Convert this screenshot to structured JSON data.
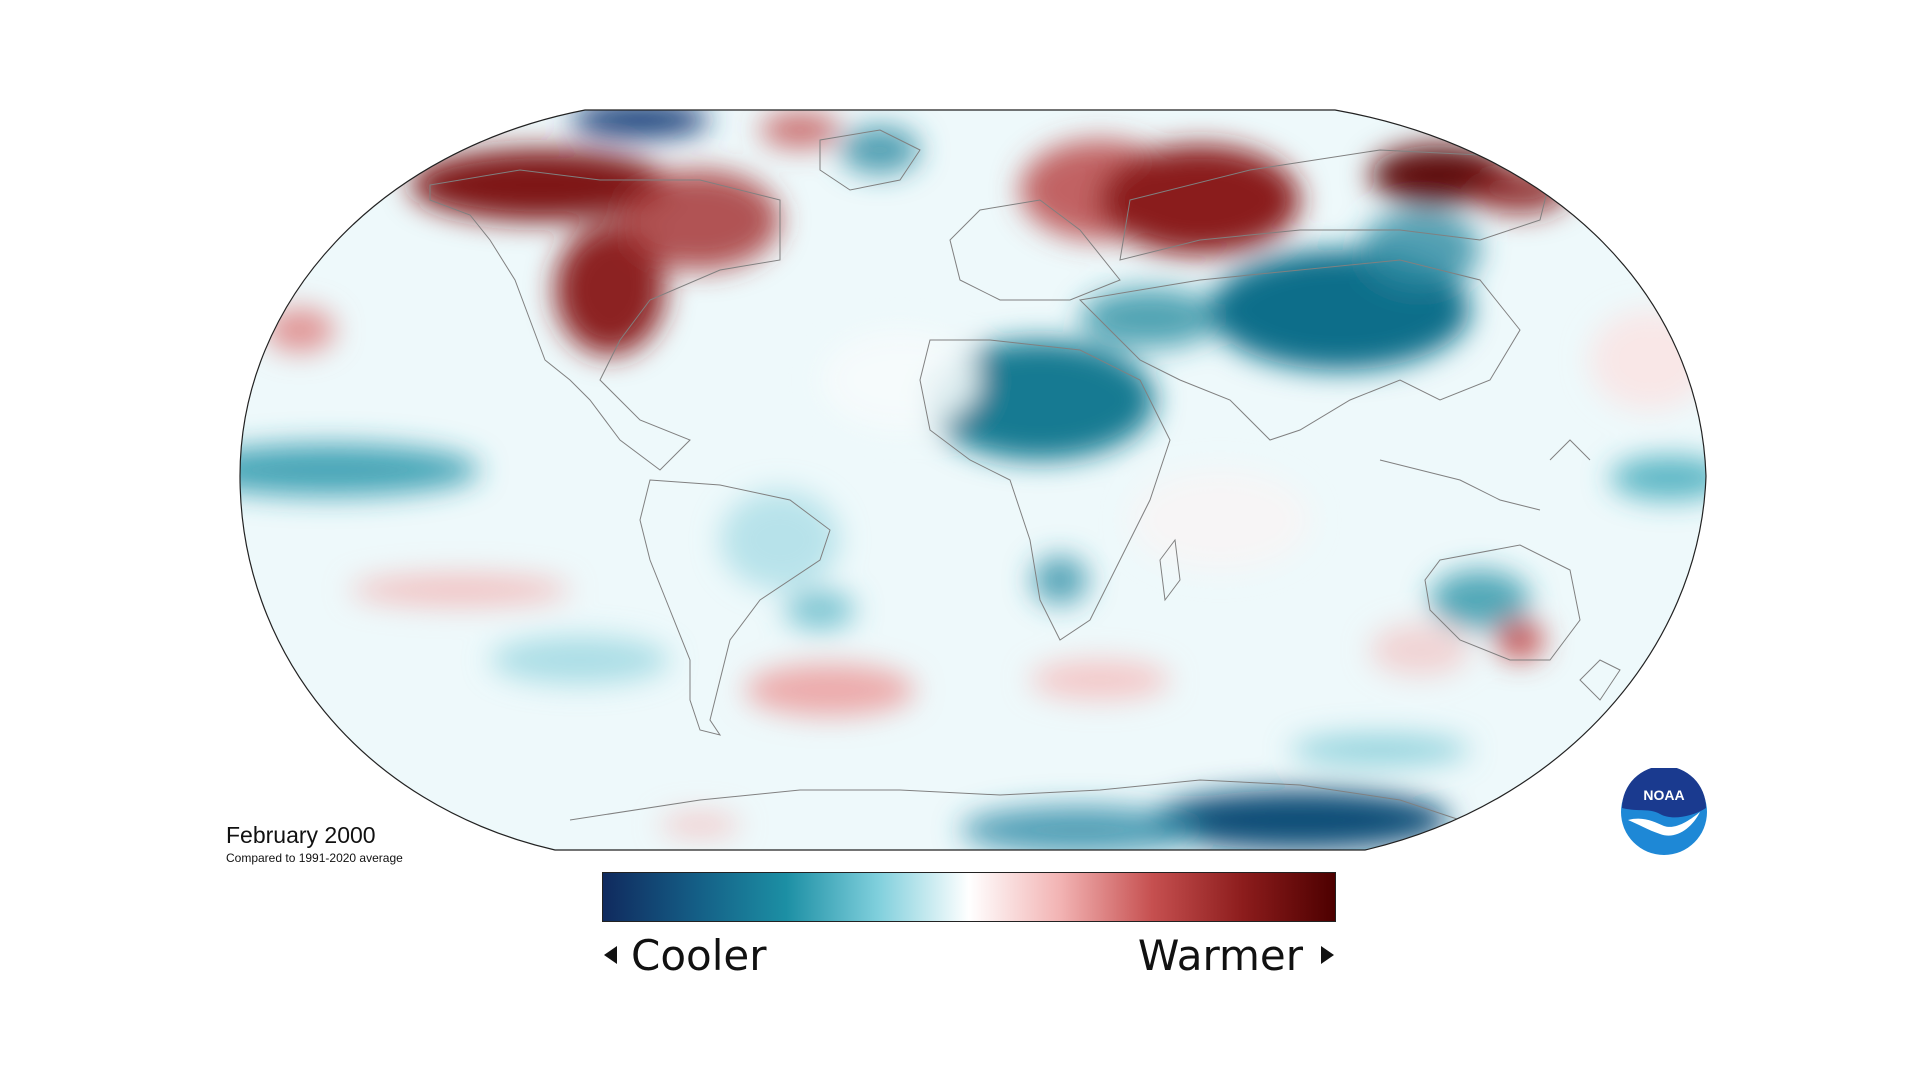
{
  "map": {
    "date_label": "February 2000",
    "subtitle": "Compared to 1991-2020 average",
    "projection": "robinson",
    "colors": {
      "cool_max": "#102a5e",
      "cool_mid": "#1a8096",
      "neutral": "#ffffff",
      "warm_mid": "#c85555",
      "warm_max": "#4d0000"
    }
  },
  "legend": {
    "cooler_label": "Cooler",
    "warmer_label": "Warmer",
    "gradient": [
      "#102a5e",
      "#145d85",
      "#1c8fa4",
      "#7fcfdc",
      "#ffffff",
      "#f2b3b3",
      "#c65050",
      "#8c1c1c",
      "#4d0000"
    ]
  },
  "logo": {
    "text": "NOAA",
    "colors": {
      "top": "#1a3a8f",
      "bottom": "#1e88d6",
      "bird": "#ffffff"
    }
  }
}
